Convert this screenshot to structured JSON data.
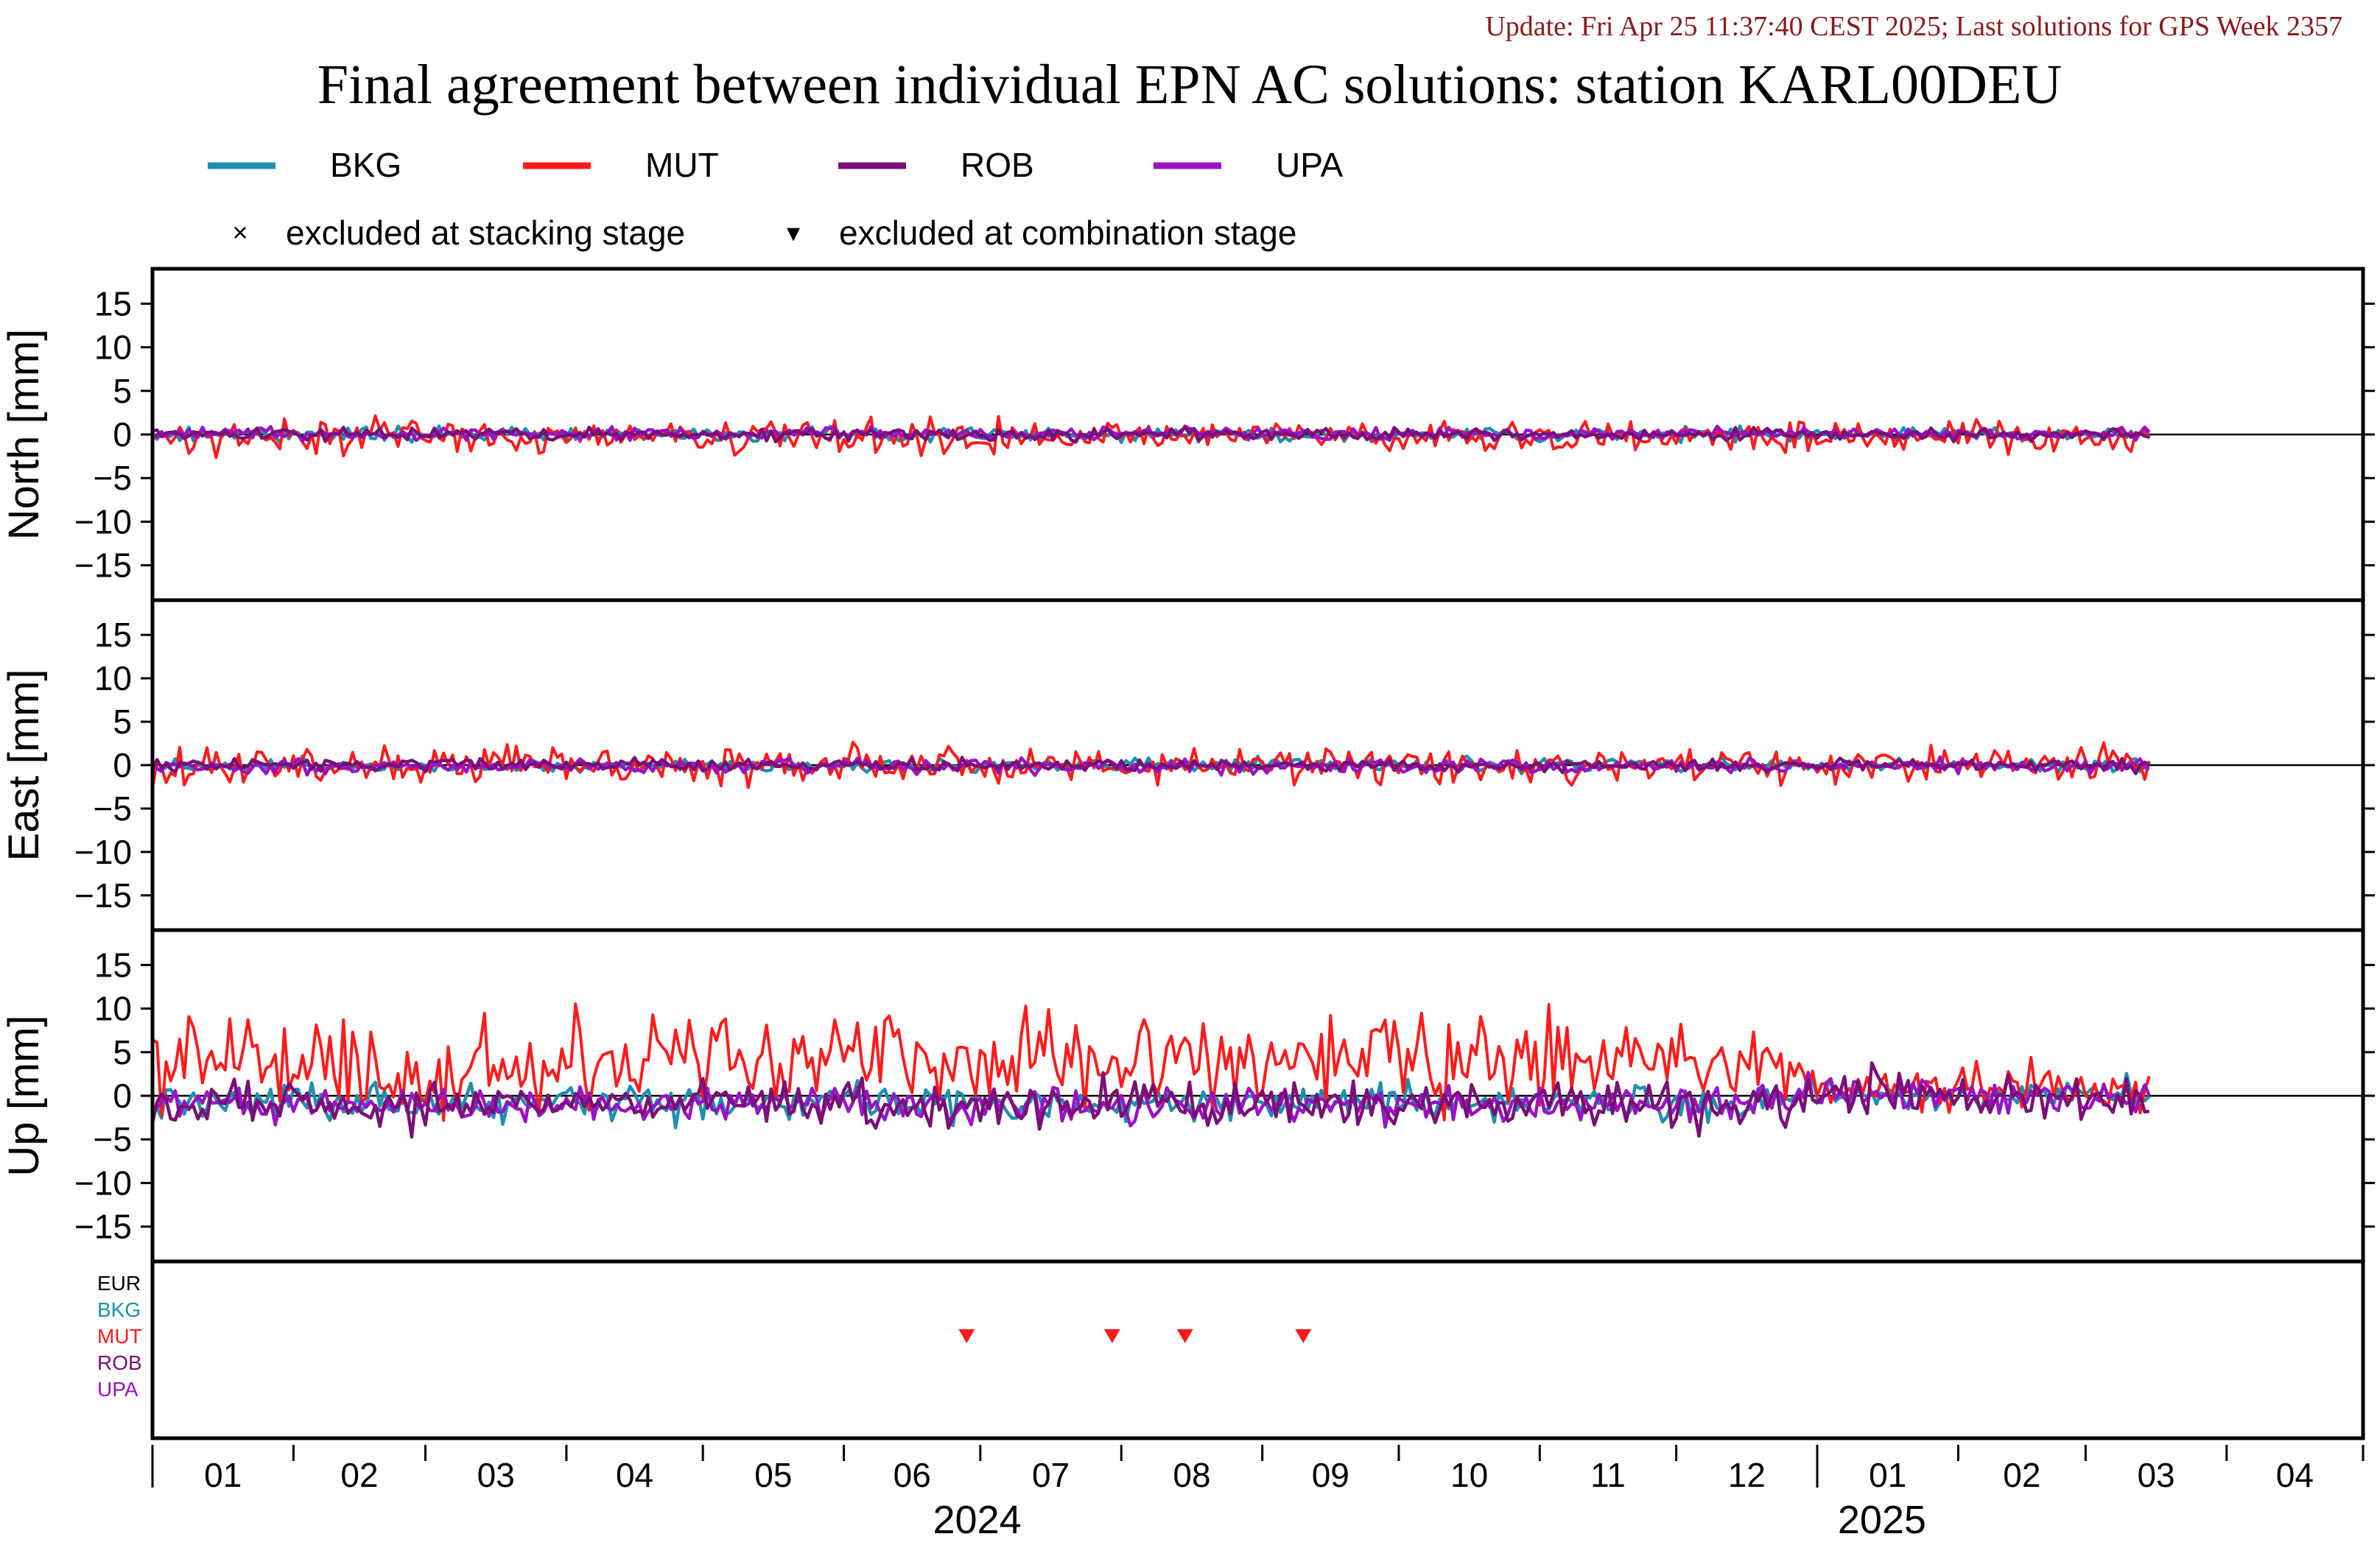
{
  "header": {
    "update_text": "Update: Fri Apr 25 11:37:40 CEST 2025; Last solutions for GPS Week 2357",
    "title": "Final agreement between individual EPN AC solutions: station KARL00DEU"
  },
  "legend": {
    "series": [
      {
        "name": "BKG",
        "color": "#1f8fb0"
      },
      {
        "name": "MUT",
        "color": "#ff1a1a"
      },
      {
        "name": "ROB",
        "color": "#7a0f78"
      },
      {
        "name": "UPA",
        "color": "#9a12c8"
      }
    ],
    "markers": [
      {
        "symbol": "×",
        "label": "excluded at stacking stage"
      },
      {
        "symbol": "▾",
        "label": "excluded at combination stage"
      }
    ]
  },
  "chart_data": {
    "type": "line",
    "x_unit": "month",
    "x_range": [
      "2024-01-01",
      "2025-04-30"
    ],
    "month_ticks": [
      "01",
      "02",
      "03",
      "04",
      "05",
      "06",
      "07",
      "08",
      "09",
      "10",
      "11",
      "12",
      "01",
      "02",
      "03",
      "04"
    ],
    "year_labels": [
      {
        "label": "2024",
        "month": "07"
      },
      {
        "label": "2025",
        "month": "02"
      }
    ],
    "panels": [
      {
        "id": "north",
        "ylabel": "North [mm]",
        "ylim": [
          -19,
          19
        ],
        "yticks": [
          "15",
          "10",
          "5",
          "0",
          "−5",
          "−10",
          "−15"
        ],
        "series": [
          {
            "name": "BKG",
            "mean": 0.0,
            "spread": 0.4
          },
          {
            "name": "MUT",
            "mean": -0.2,
            "spread": 0.9
          },
          {
            "name": "ROB",
            "mean": 0.0,
            "spread": 0.35
          },
          {
            "name": "UPA",
            "mean": 0.1,
            "spread": 0.35
          }
        ]
      },
      {
        "id": "east",
        "ylabel": "East [mm]",
        "ylim": [
          -19,
          19
        ],
        "yticks": [
          "15",
          "10",
          "5",
          "0",
          "−5",
          "−10",
          "−15"
        ],
        "series": [
          {
            "name": "BKG",
            "mean": 0.0,
            "spread": 0.4
          },
          {
            "name": "MUT",
            "mean": 0.0,
            "spread": 1.0
          },
          {
            "name": "ROB",
            "mean": 0.0,
            "spread": 0.35
          },
          {
            "name": "UPA",
            "mean": -0.1,
            "spread": 0.4
          }
        ]
      },
      {
        "id": "up",
        "ylabel": "Up [mm]",
        "ylim": [
          -19,
          19
        ],
        "yticks": [
          "15",
          "10",
          "5",
          "0",
          "−5",
          "−10",
          "−15"
        ],
        "series": [
          {
            "name": "BKG",
            "mean": -0.8,
            "spread": 1.0
          },
          {
            "name": "MUT",
            "mean": 4.0,
            "spread": 2.6
          },
          {
            "name": "ROB",
            "mean": -1.0,
            "spread": 1.3
          },
          {
            "name": "UPA",
            "mean": -1.0,
            "spread": 1.0
          }
        ]
      }
    ],
    "exclusion_panel": {
      "labels": [
        {
          "name": "EUR",
          "color": "#000000"
        },
        {
          "name": "BKG",
          "color": "#1f8fb0"
        },
        {
          "name": "MUT",
          "color": "#ff1a1a"
        },
        {
          "name": "ROB",
          "color": "#7a0f78"
        },
        {
          "name": "UPA",
          "color": "#9a12c8"
        }
      ],
      "combination_exclusions": [
        {
          "series": "MUT",
          "date": "2024-06-28"
        },
        {
          "series": "MUT",
          "date": "2024-07-30"
        },
        {
          "series": "MUT",
          "date": "2024-08-15"
        },
        {
          "series": "MUT",
          "date": "2024-09-10"
        }
      ]
    }
  }
}
